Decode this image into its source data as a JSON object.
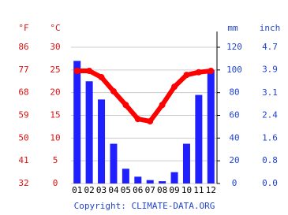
{
  "chart_data": {
    "type": "climate",
    "categories": [
      "01",
      "02",
      "03",
      "04",
      "05",
      "06",
      "07",
      "08",
      "09",
      "10",
      "11",
      "12"
    ],
    "series": [
      {
        "type": "bar",
        "axis": "y2",
        "color": "#1f1fff",
        "values": [
          108,
          90,
          74,
          35,
          13,
          6,
          3,
          2,
          10,
          35,
          78,
          100
        ]
      },
      {
        "type": "line",
        "color": "#ff0000",
        "values": [
          24.8,
          24.8,
          23.4,
          20.3,
          17.3,
          14.2,
          13.7,
          17.3,
          21.3,
          23.9,
          24.5,
          24.8
        ]
      }
    ],
    "ylabel": "°C",
    "ylim": [
      0,
      30
    ],
    "yticks": [
      0,
      5,
      10,
      15,
      20,
      25,
      30
    ],
    "y2label": "mm",
    "y2lim": [
      0,
      120
    ],
    "y2ticks": [
      0,
      20,
      40,
      60,
      80,
      100,
      120
    ],
    "y3label": "°F",
    "y3lim": [
      32,
      86
    ],
    "y3ticks": [
      32,
      41,
      50,
      59,
      68,
      77,
      86
    ],
    "y4label": "inch",
    "y4lim": [
      0,
      4.72
    ],
    "y4ticks": [
      {
        "value": 0,
        "label": "0.0"
      },
      {
        "value": 0.79,
        "label": "0.8"
      },
      {
        "value": 1.57,
        "label": "1.6"
      },
      {
        "value": 2.36,
        "label": "2.4"
      },
      {
        "value": 3.14,
        "label": "3.1"
      },
      {
        "value": 3.94,
        "label": "3.9"
      },
      {
        "value": 4.72,
        "label": "4.7"
      }
    ],
    "temp_color": "#dd1111",
    "rain_color": "#2244cc",
    "grid": true,
    "source": "Copyright: CLIMATE-DATA.ORG"
  }
}
